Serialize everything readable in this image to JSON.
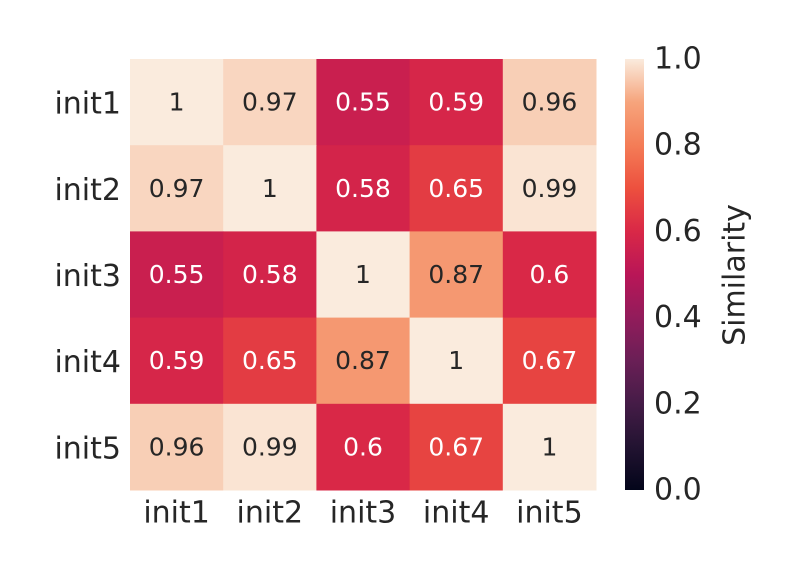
{
  "chart_data": {
    "type": "heatmap",
    "x_categories": [
      "init1",
      "init2",
      "init3",
      "init4",
      "init5"
    ],
    "y_categories": [
      "init1",
      "init2",
      "init3",
      "init4",
      "init5"
    ],
    "values": [
      [
        1,
        0.97,
        0.55,
        0.59,
        0.96
      ],
      [
        0.97,
        1,
        0.58,
        0.65,
        0.99
      ],
      [
        0.55,
        0.58,
        1,
        0.87,
        0.6
      ],
      [
        0.59,
        0.65,
        0.87,
        1,
        0.67
      ],
      [
        0.96,
        0.99,
        0.6,
        0.67,
        1
      ]
    ],
    "cell_labels": [
      [
        "1",
        "0.97",
        "0.55",
        "0.59",
        "0.96"
      ],
      [
        "0.97",
        "1",
        "0.58",
        "0.65",
        "0.99"
      ],
      [
        "0.55",
        "0.58",
        "1",
        "0.87",
        "0.6"
      ],
      [
        "0.59",
        "0.65",
        "0.87",
        "1",
        "0.67"
      ],
      [
        "0.96",
        "0.99",
        "0.6",
        "0.67",
        "1"
      ]
    ],
    "colorbar": {
      "label": "Similarity",
      "range": [
        0,
        1
      ],
      "ticks": [
        0.0,
        0.2,
        0.4,
        0.6,
        0.8,
        1.0
      ],
      "tick_labels": [
        "0.0",
        "0.2",
        "0.4",
        "0.6",
        "0.8",
        "1.0"
      ],
      "colormap": "rocket",
      "colormap_stops": [
        [
          0.0,
          "#03051a"
        ],
        [
          0.1,
          "#221331"
        ],
        [
          0.2,
          "#451c47"
        ],
        [
          0.3,
          "#6a1f56"
        ],
        [
          0.4,
          "#921c5b"
        ],
        [
          0.5,
          "#b91657"
        ],
        [
          0.6,
          "#d92847"
        ],
        [
          0.7,
          "#ed503e"
        ],
        [
          0.8,
          "#f47d57"
        ],
        [
          0.9,
          "#f6a47c"
        ],
        [
          1.0,
          "#faebdd"
        ]
      ]
    },
    "grid": false
  }
}
